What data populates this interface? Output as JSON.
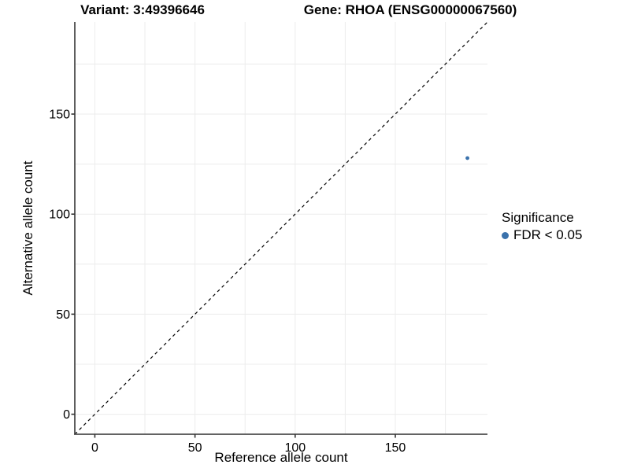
{
  "chart_data": {
    "type": "scatter",
    "title_left": "Variant: 3:49396646",
    "title_right": "Gene: RHOA (ENSG00000067560)",
    "xlabel": "Reference allele count",
    "ylabel": "Alternative allele count",
    "xlim": [
      -10,
      196
    ],
    "ylim": [
      -10,
      196
    ],
    "xticks": [
      0,
      50,
      100,
      150
    ],
    "yticks": [
      0,
      50,
      100,
      150
    ],
    "grid_interval": 25,
    "grid_on": true,
    "diagonal_line": {
      "style": "dashed",
      "equation": "y = x"
    },
    "points": [
      {
        "x": 186,
        "y": 128,
        "series": "FDR < 0.05"
      }
    ],
    "legend": {
      "position": "right",
      "title": "Significance",
      "items": [
        {
          "label": "FDR < 0.05",
          "color": "#3a72ac",
          "marker": "circle"
        }
      ]
    },
    "colors": {
      "point": "#3a72ac",
      "grid": "#ececec",
      "axis": "#4d4d4d",
      "tick": "#333333",
      "diagonal": "#000000",
      "text": "#000000",
      "background": "#ffffff"
    }
  }
}
